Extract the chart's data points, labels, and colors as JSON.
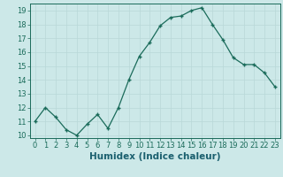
{
  "x": [
    0,
    1,
    2,
    3,
    4,
    5,
    6,
    7,
    8,
    9,
    10,
    11,
    12,
    13,
    14,
    15,
    16,
    17,
    18,
    19,
    20,
    21,
    22,
    23
  ],
  "y": [
    11.0,
    12.0,
    11.3,
    10.4,
    10.0,
    10.8,
    11.5,
    10.5,
    12.0,
    14.0,
    15.7,
    16.7,
    17.9,
    18.5,
    18.6,
    19.0,
    19.2,
    18.0,
    16.9,
    15.6,
    15.1,
    15.1,
    14.5,
    13.5
  ],
  "line_color": "#1a6b5a",
  "marker": "+",
  "marker_size": 3.5,
  "xlabel": "Humidex (Indice chaleur)",
  "xlim": [
    -0.5,
    23.5
  ],
  "ylim": [
    9.8,
    19.5
  ],
  "yticks": [
    10,
    11,
    12,
    13,
    14,
    15,
    16,
    17,
    18,
    19
  ],
  "xticks": [
    0,
    1,
    2,
    3,
    4,
    5,
    6,
    7,
    8,
    9,
    10,
    11,
    12,
    13,
    14,
    15,
    16,
    17,
    18,
    19,
    20,
    21,
    22,
    23
  ],
  "bg_color": "#cce8e8",
  "grid_color": "#b8d8d8",
  "line_width": 0.9,
  "tick_color": "#1a6b5a",
  "label_color": "#1a5f6e",
  "xlabel_fontsize": 7.5,
  "tick_fontsize": 6.0
}
